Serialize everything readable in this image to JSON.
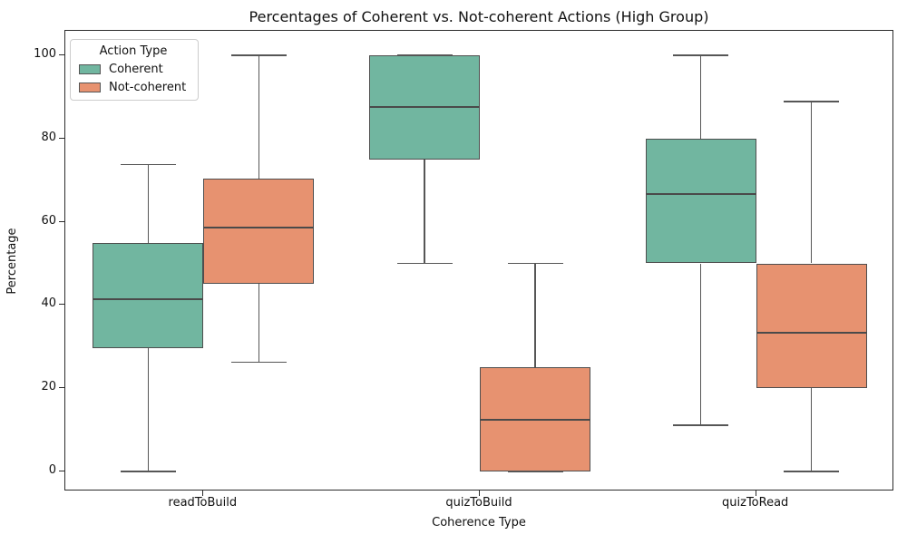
{
  "chart_data": {
    "type": "boxplot",
    "title": "Percentages of Coherent vs. Not-coherent Actions (High Group)",
    "xlabel": "Coherence Type",
    "ylabel": "Percentage",
    "categories": [
      "readToBuild",
      "quizToBuild",
      "quizToRead"
    ],
    "y_ticks": [
      0,
      20,
      40,
      60,
      80,
      100
    ],
    "ylim": [
      -5,
      105
    ],
    "grid": false,
    "legend": {
      "title": "Action Type",
      "position": "upper left"
    },
    "colors": {
      "coherent": "#71b6a0",
      "not_coherent": "#e79270",
      "line": "#565656"
    },
    "series": [
      {
        "name": "Coherent",
        "color": "#71b6a0",
        "boxes": [
          {
            "category": "readToBuild",
            "whislo": 0,
            "q1": 29.6,
            "med": 41.4,
            "q3": 55,
            "whishi": 73.7
          },
          {
            "category": "quizToBuild",
            "whislo": 50,
            "q1": 75,
            "med": 87.5,
            "q3": 100,
            "whishi": 100
          },
          {
            "category": "quizToRead",
            "whislo": 11.1,
            "q1": 50,
            "med": 66.7,
            "q3": 80,
            "whishi": 100
          }
        ]
      },
      {
        "name": "Not-coherent",
        "color": "#e79270",
        "boxes": [
          {
            "category": "readToBuild",
            "whislo": 26.3,
            "q1": 45,
            "med": 58.6,
            "q3": 70.4,
            "whishi": 100
          },
          {
            "category": "quizToBuild",
            "whislo": 0,
            "q1": 0,
            "med": 12.5,
            "q3": 25,
            "whishi": 50
          },
          {
            "category": "quizToRead",
            "whislo": 0,
            "q1": 20,
            "med": 33.3,
            "q3": 50,
            "whishi": 88.9
          }
        ]
      }
    ]
  }
}
